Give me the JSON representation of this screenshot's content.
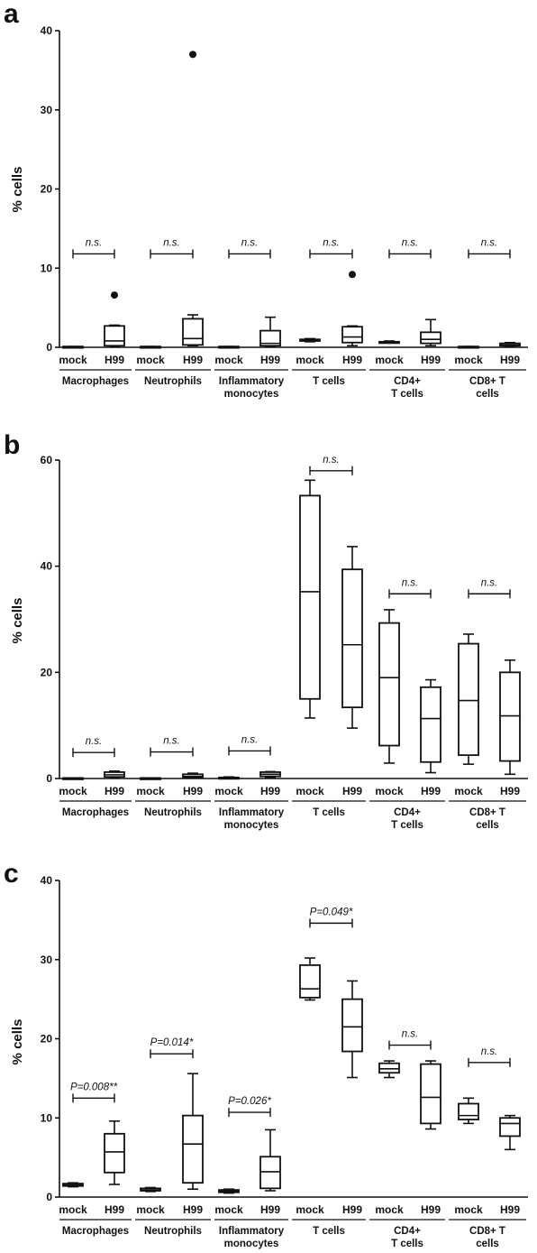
{
  "panel_labels": [
    "a",
    "b",
    "c"
  ],
  "chart_data": [
    {
      "type": "box",
      "panel": "a",
      "ylabel": "% cells",
      "ylim": [
        0,
        40
      ],
      "yticks": [
        "0",
        "10",
        "20",
        "30",
        "40"
      ],
      "x_labels": [
        "mock",
        "H99",
        "mock",
        "H99",
        "mock",
        "H99",
        "mock",
        "H99",
        "mock",
        "H99",
        "mock",
        "H99"
      ],
      "groups": [
        "Macrophages",
        "Neutrophils",
        "Inflammatory\nmonocytes",
        "T cells",
        "CD4+\nT cells",
        "CD8+  T\ncells"
      ],
      "boxes": [
        {
          "min": 0,
          "q1": 0,
          "median": 0,
          "q3": 0.1,
          "max": 0.1
        },
        {
          "min": 0.1,
          "q1": 0.2,
          "median": 0.8,
          "q3": 2.7,
          "max": 2.8,
          "outliers": [
            6.6
          ]
        },
        {
          "min": 0,
          "q1": 0,
          "median": 0,
          "q3": 0.1,
          "max": 0.1
        },
        {
          "min": 0.2,
          "q1": 0.3,
          "median": 1.1,
          "q3": 3.6,
          "max": 4.1,
          "outliers": [
            37
          ]
        },
        {
          "min": 0,
          "q1": 0,
          "median": 0,
          "q3": 0.1,
          "max": 0.1
        },
        {
          "min": 0.1,
          "q1": 0.2,
          "median": 0.5,
          "q3": 2.1,
          "max": 3.8
        },
        {
          "min": 0.7,
          "q1": 0.8,
          "median": 0.9,
          "q3": 1.0,
          "max": 1.1
        },
        {
          "min": 0.2,
          "q1": 0.6,
          "median": 1.3,
          "q3": 2.6,
          "max": 2.7,
          "outliers": [
            9.2
          ]
        },
        {
          "min": 0.6,
          "q1": 0.6,
          "median": 0.7,
          "q3": 0.7,
          "max": 0.8
        },
        {
          "min": 0.2,
          "q1": 0.5,
          "median": 1.0,
          "q3": 1.9,
          "max": 3.5
        },
        {
          "min": 0,
          "q1": 0,
          "median": 0,
          "q3": 0.1,
          "max": 0.1
        },
        {
          "min": 0.1,
          "q1": 0.2,
          "median": 0.3,
          "q3": 0.5,
          "max": 0.6
        }
      ],
      "annotations": [
        {
          "text": "n.s.",
          "y": 11.8
        },
        {
          "text": "n.s.",
          "y": 11.8
        },
        {
          "text": "n.s.",
          "y": 11.8
        },
        {
          "text": "n.s.",
          "y": 11.8
        },
        {
          "text": "n.s.",
          "y": 11.8
        },
        {
          "text": "n.s.",
          "y": 11.8
        }
      ]
    },
    {
      "type": "box",
      "panel": "b",
      "ylabel": "% cells",
      "ylim": [
        0,
        60
      ],
      "yticks": [
        "0",
        "20",
        "40",
        "60"
      ],
      "x_labels": [
        "mock",
        "H99",
        "mock",
        "H99",
        "mock",
        "H99",
        "mock",
        "H99",
        "mock",
        "H99",
        "mock",
        "H99"
      ],
      "groups": [
        "Macrophages",
        "Neutrophils",
        "Inflammatory\nmonocytes",
        "T cells",
        "CD4+\nT cells",
        "CD8+  T\ncells"
      ],
      "boxes": [
        {
          "min": 0,
          "q1": 0,
          "median": 0,
          "q3": 0.1,
          "max": 0.1
        },
        {
          "min": 0.2,
          "q1": 0.3,
          "median": 0.7,
          "q3": 1.2,
          "max": 1.4
        },
        {
          "min": 0,
          "q1": 0,
          "median": 0,
          "q3": 0.1,
          "max": 0.1
        },
        {
          "min": 0.1,
          "q1": 0.2,
          "median": 0.4,
          "q3": 0.8,
          "max": 1.0
        },
        {
          "min": 0,
          "q1": 0,
          "median": 0.1,
          "q3": 0.2,
          "max": 0.3
        },
        {
          "min": 0.2,
          "q1": 0.4,
          "median": 0.8,
          "q3": 1.2,
          "max": 1.3
        },
        {
          "min": 11.4,
          "q1": 15.0,
          "median": 35.2,
          "q3": 53.3,
          "max": 56.2
        },
        {
          "min": 9.5,
          "q1": 13.4,
          "median": 25.2,
          "q3": 39.4,
          "max": 43.7
        },
        {
          "min": 2.9,
          "q1": 6.2,
          "median": 19.0,
          "q3": 29.3,
          "max": 31.8
        },
        {
          "min": 1.1,
          "q1": 3.1,
          "median": 11.3,
          "q3": 17.2,
          "max": 18.6
        },
        {
          "min": 2.7,
          "q1": 4.4,
          "median": 14.7,
          "q3": 25.4,
          "max": 27.2
        },
        {
          "min": 0.8,
          "q1": 3.3,
          "median": 11.8,
          "q3": 20.0,
          "max": 22.3
        }
      ],
      "annotations": [
        {
          "text": "n.s.",
          "y": 4.9
        },
        {
          "text": "n.s.",
          "y": 5.0
        },
        {
          "text": "n.s.",
          "y": 5.2
        },
        {
          "text": "n.s.",
          "y": 58.0
        },
        {
          "text": "n.s.",
          "y": 34.8
        },
        {
          "text": "n.s.",
          "y": 34.8
        }
      ]
    },
    {
      "type": "box",
      "panel": "c",
      "ylabel": "% cells",
      "ylim": [
        0,
        40
      ],
      "yticks": [
        "0",
        "10",
        "20",
        "30",
        "40"
      ],
      "x_labels": [
        "mock",
        "H99",
        "mock",
        "H99",
        "mock",
        "H99",
        "mock",
        "H99",
        "mock",
        "H99",
        "mock",
        "H99"
      ],
      "groups": [
        "Macrophages",
        "Neutrophils",
        "Inflammatory\nmonocytes",
        "T cells",
        "CD4+\nT cells",
        "CD8+  T\ncells"
      ],
      "boxes": [
        {
          "min": 1.3,
          "q1": 1.4,
          "median": 1.5,
          "q3": 1.7,
          "max": 1.8
        },
        {
          "min": 1.6,
          "q1": 3.1,
          "median": 5.7,
          "q3": 8.0,
          "max": 9.6
        },
        {
          "min": 0.7,
          "q1": 0.8,
          "median": 0.9,
          "q3": 1.1,
          "max": 1.2
        },
        {
          "min": 1.0,
          "q1": 1.8,
          "median": 6.7,
          "q3": 10.3,
          "max": 15.6
        },
        {
          "min": 0.5,
          "q1": 0.6,
          "median": 0.7,
          "q3": 0.9,
          "max": 1.0
        },
        {
          "min": 0.8,
          "q1": 1.1,
          "median": 3.2,
          "q3": 5.1,
          "max": 8.5
        },
        {
          "min": 24.9,
          "q1": 25.2,
          "median": 26.3,
          "q3": 29.3,
          "max": 30.2
        },
        {
          "min": 15.1,
          "q1": 18.4,
          "median": 21.5,
          "q3": 25.0,
          "max": 27.3
        },
        {
          "min": 15.1,
          "q1": 15.7,
          "median": 16.2,
          "q3": 16.9,
          "max": 17.2
        },
        {
          "min": 8.6,
          "q1": 9.3,
          "median": 12.6,
          "q3": 16.8,
          "max": 17.2
        },
        {
          "min": 9.3,
          "q1": 9.8,
          "median": 10.3,
          "q3": 11.8,
          "max": 12.5
        },
        {
          "min": 6.0,
          "q1": 7.7,
          "median": 9.3,
          "q3": 10.0,
          "max": 10.3
        }
      ],
      "annotations": [
        {
          "text": "P=0.008**",
          "y": 12.5
        },
        {
          "text": "P=0.014*",
          "y": 18.1
        },
        {
          "text": "P=0.026*",
          "y": 10.7
        },
        {
          "text": "P=0.049*",
          "y": 34.6
        },
        {
          "text": "n.s.",
          "y": 19.2
        },
        {
          "text": "n.s.",
          "y": 17.0
        }
      ]
    }
  ]
}
